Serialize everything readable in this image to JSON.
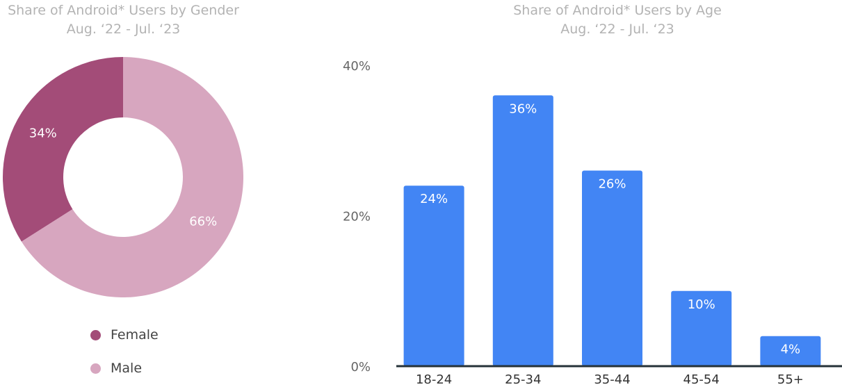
{
  "chart_data": [
    {
      "type": "pie",
      "title": "Share of Android* Users by Gender",
      "subtitle": "Aug. ‘22 - Jul. ‘23",
      "categories": [
        "Female",
        "Male"
      ],
      "values": [
        34,
        66
      ],
      "value_labels": [
        "34%",
        "66%"
      ],
      "colors": [
        "#a34c78",
        "#d7a6bf"
      ],
      "donut": true,
      "legend": "bottom"
    },
    {
      "type": "bar",
      "title": "Share of Android* Users by Age",
      "subtitle": "Aug. ‘22 - Jul. ‘23",
      "categories": [
        "18-24",
        "25-34",
        "35-44",
        "45-54",
        "55+"
      ],
      "values": [
        24,
        36,
        26,
        10,
        4
      ],
      "value_labels": [
        "24%",
        "36%",
        "26%",
        "10%",
        "4%"
      ],
      "ylim": [
        0,
        40
      ],
      "yticks": [
        0,
        20,
        40
      ],
      "ytick_labels": [
        "0%",
        "20%",
        "40%"
      ],
      "xlabel": "",
      "ylabel": "",
      "grid": false,
      "bar_color": "#4285f4",
      "baseline_color": "#263238"
    }
  ]
}
